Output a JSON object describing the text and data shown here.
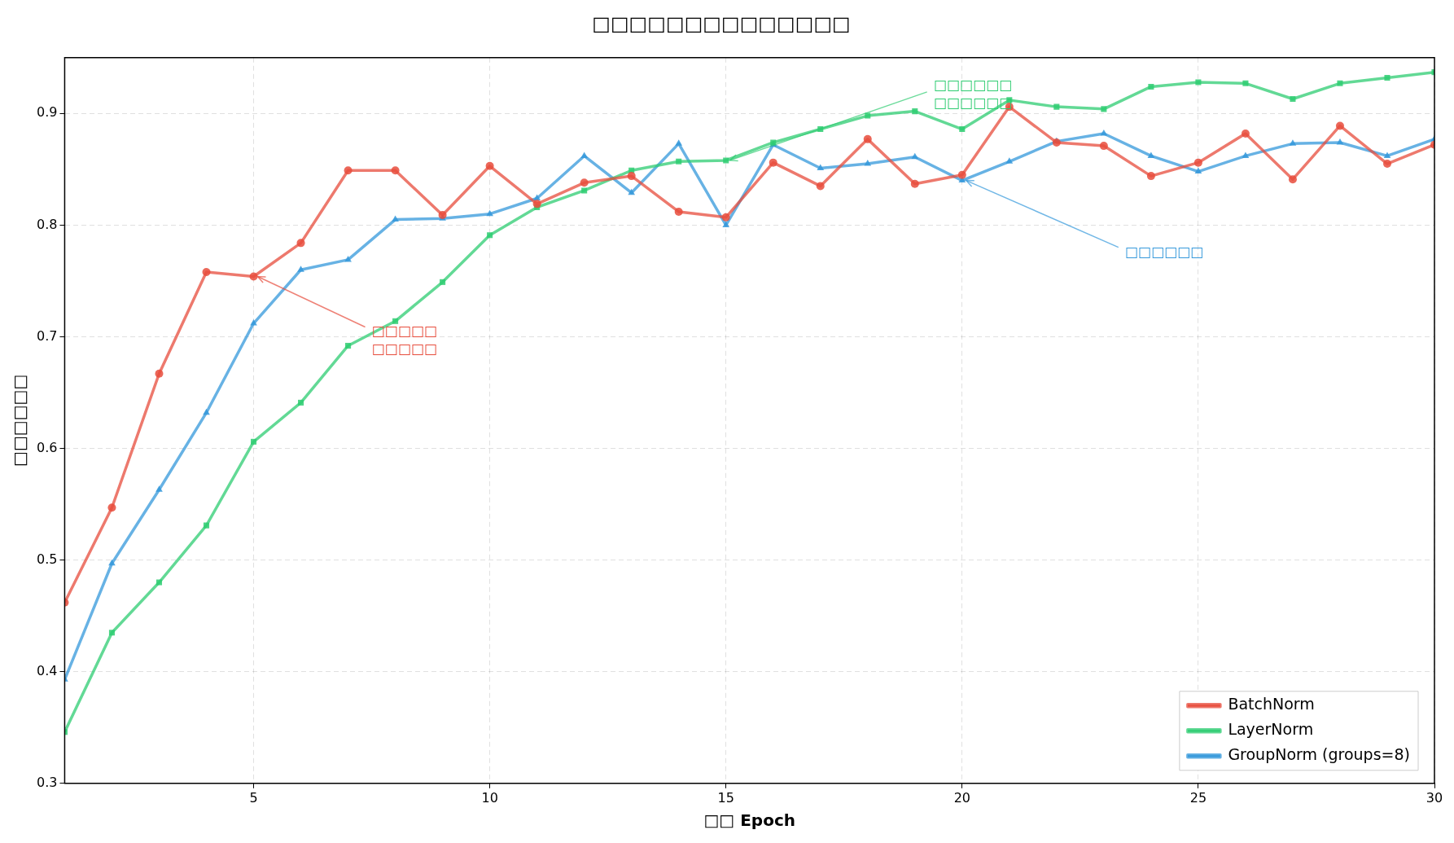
{
  "chart_data": {
    "type": "line",
    "title": "□□□□□□□□□□□□□□",
    "xlabel": "□□ Epoch",
    "ylabel": "□□□□□□",
    "x": [
      1,
      2,
      3,
      4,
      5,
      6,
      7,
      8,
      9,
      10,
      11,
      12,
      13,
      14,
      15,
      16,
      17,
      18,
      19,
      20,
      21,
      22,
      23,
      24,
      25,
      26,
      27,
      28,
      29,
      30
    ],
    "series": [
      {
        "name": "BatchNorm",
        "color": "#e74c3c",
        "marker": "circle",
        "values": [
          0.462,
          0.547,
          0.667,
          0.758,
          0.754,
          0.784,
          0.849,
          0.849,
          0.809,
          0.853,
          0.819,
          0.838,
          0.844,
          0.812,
          0.807,
          0.856,
          0.835,
          0.877,
          0.837,
          0.845,
          0.906,
          0.874,
          0.871,
          0.844,
          0.856,
          0.882,
          0.841,
          0.889,
          0.855,
          0.872
        ]
      },
      {
        "name": "LayerNorm",
        "color": "#2ecc71",
        "marker": "square",
        "values": [
          0.346,
          0.435,
          0.48,
          0.531,
          0.606,
          0.641,
          0.692,
          0.714,
          0.749,
          0.791,
          0.816,
          0.831,
          0.849,
          0.857,
          0.858,
          0.874,
          0.886,
          0.898,
          0.902,
          0.886,
          0.912,
          0.906,
          0.904,
          0.924,
          0.928,
          0.927,
          0.913,
          0.927,
          0.932,
          0.937
        ]
      },
      {
        "name": "GroupNorm (groups=8)",
        "color": "#3498db",
        "marker": "triangle",
        "values": [
          0.393,
          0.497,
          0.563,
          0.632,
          0.712,
          0.76,
          0.769,
          0.805,
          0.806,
          0.81,
          0.824,
          0.862,
          0.829,
          0.873,
          0.8,
          0.872,
          0.851,
          0.855,
          0.861,
          0.84,
          0.857,
          0.875,
          0.882,
          0.862,
          0.848,
          0.862,
          0.873,
          0.874,
          0.862,
          0.877
        ]
      }
    ],
    "xlim": [
      1,
      30
    ],
    "xticks": [
      5,
      10,
      15,
      20,
      25,
      30
    ],
    "ylim": [
      0.3,
      0.95
    ],
    "yticks": [
      0.3,
      0.4,
      0.5,
      0.6,
      0.7,
      0.8,
      0.9
    ],
    "grid": true,
    "legend": "bottom right",
    "line_style": "solid",
    "annotations": [
      {
        "text": "□□□□□\n□□□□□",
        "x": 5,
        "y": 0.754
      },
      {
        "text": "□□□□□□\n□□□□□□",
        "x": 15,
        "y": 0.858
      },
      {
        "text": "□□□□□□",
        "x": 20,
        "y": 0.84
      }
    ]
  }
}
